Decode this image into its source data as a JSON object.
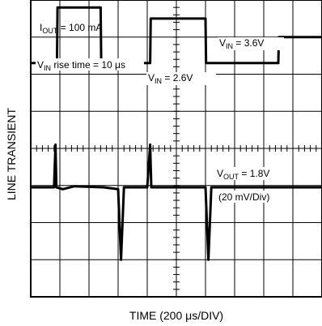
{
  "chart_data": {
    "type": "line",
    "ylabel": "LINE TRANSIENT",
    "xlabel": "TIME (200 μs/DIV)",
    "grid": true,
    "x_divisions": 10,
    "y_divisions": 8,
    "annotations": {
      "iout": {
        "main": "I",
        "sub": "OUT",
        "rest": " = 100 mA"
      },
      "rise": {
        "main": "V",
        "sub": "IN",
        "rest": " rise time = 10 μs"
      },
      "vin_low": {
        "main": "V",
        "sub": "IN",
        "rest": " = 2.6V"
      },
      "vin_high": {
        "main": "V",
        "sub": "IN",
        "rest": " = 3.6V"
      },
      "vout": {
        "main": "V",
        "sub": "OUT",
        "rest": " = 1.8V"
      },
      "scale": "(20 mV/Div)"
    },
    "series": [
      {
        "key": "vin",
        "points": [
          [
            0,
            6.3
          ],
          [
            0.9,
            6.3
          ],
          [
            0.92,
            7.8
          ],
          [
            2.4,
            7.8
          ],
          [
            2.42,
            6.3
          ],
          [
            4.1,
            6.3
          ],
          [
            4.12,
            7.5
          ],
          [
            6.0,
            7.5
          ],
          [
            6.02,
            6.3
          ],
          [
            8.5,
            6.3
          ],
          [
            8.52,
            7.0
          ],
          [
            10,
            7.0
          ]
        ]
      },
      {
        "key": "vout",
        "points": [
          [
            0,
            2.95
          ],
          [
            0.8,
            2.95
          ],
          [
            0.85,
            4.1
          ],
          [
            0.88,
            2.95
          ],
          [
            1.1,
            2.9
          ],
          [
            1.5,
            2.98
          ],
          [
            2.5,
            2.95
          ],
          [
            3.0,
            2.9
          ],
          [
            3.1,
            1.0
          ],
          [
            3.2,
            2.95
          ],
          [
            3.5,
            2.95
          ],
          [
            4.0,
            2.95
          ],
          [
            4.1,
            4.1
          ],
          [
            4.14,
            2.95
          ],
          [
            4.5,
            2.95
          ],
          [
            6.0,
            2.95
          ],
          [
            6.1,
            1.0
          ],
          [
            6.2,
            2.95
          ],
          [
            10,
            2.95
          ]
        ]
      }
    ]
  }
}
